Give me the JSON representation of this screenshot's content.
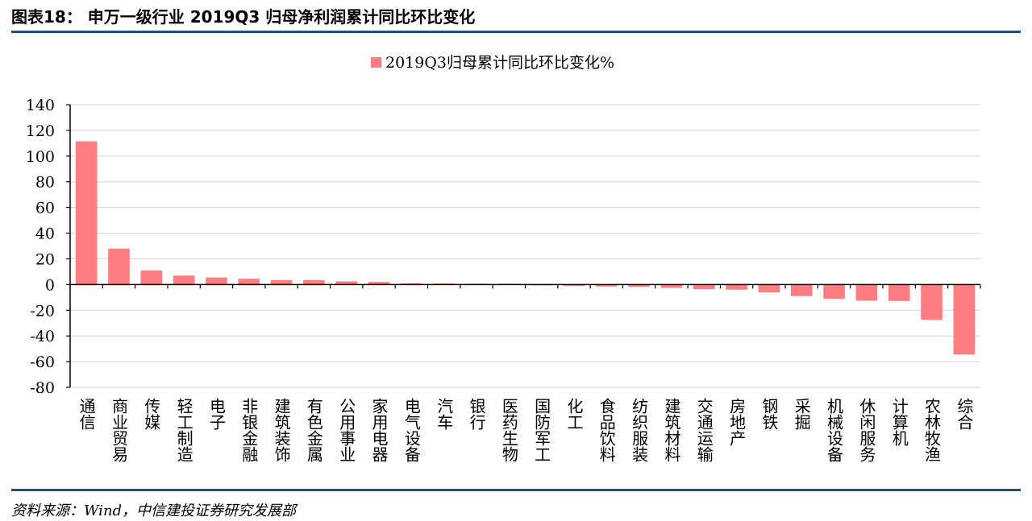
{
  "figure_title": "图表18：   申万一级行业 2019Q3 归母净利润累计同比环比变化",
  "source_note": "资料来源：Wind，中信建投证券研究发展部",
  "colors": {
    "bar": "#ff7c80",
    "rule": "#1f4e79",
    "grid": "#d9d9d9"
  },
  "chart_data": {
    "type": "bar",
    "title": "",
    "xlabel": "",
    "ylabel": "",
    "ylim": [
      -80,
      140
    ],
    "yticks": [
      140,
      120,
      100,
      80,
      60,
      40,
      20,
      0,
      -20,
      -40,
      -60,
      -80
    ],
    "grid": true,
    "legend_position": "top-center",
    "categories": [
      "通信",
      "商业贸易",
      "传媒",
      "轻工制造",
      "电子",
      "非银金融",
      "建筑装饰",
      "有色金属",
      "公用事业",
      "家用电器",
      "电气设备",
      "汽车",
      "银行",
      "医药生物",
      "国防军工",
      "化工",
      "食品饮料",
      "纺织服装",
      "建筑材料",
      "交通运输",
      "房地产",
      "钢铁",
      "采掘",
      "机械设备",
      "休闲服务",
      "计算机",
      "农林牧渔",
      "综合"
    ],
    "series": [
      {
        "name": "2019Q3归母累计同比环比变化%",
        "values": [
          111.5,
          28.0,
          11.0,
          7.0,
          5.5,
          4.5,
          3.5,
          3.5,
          2.5,
          2.0,
          1.0,
          0.8,
          0.3,
          0.2,
          -0.3,
          -1.0,
          -1.5,
          -1.8,
          -2.5,
          -3.5,
          -4.0,
          -6.0,
          -9.0,
          -11.0,
          -12.5,
          -12.8,
          -27.5,
          -54.5
        ]
      }
    ]
  }
}
